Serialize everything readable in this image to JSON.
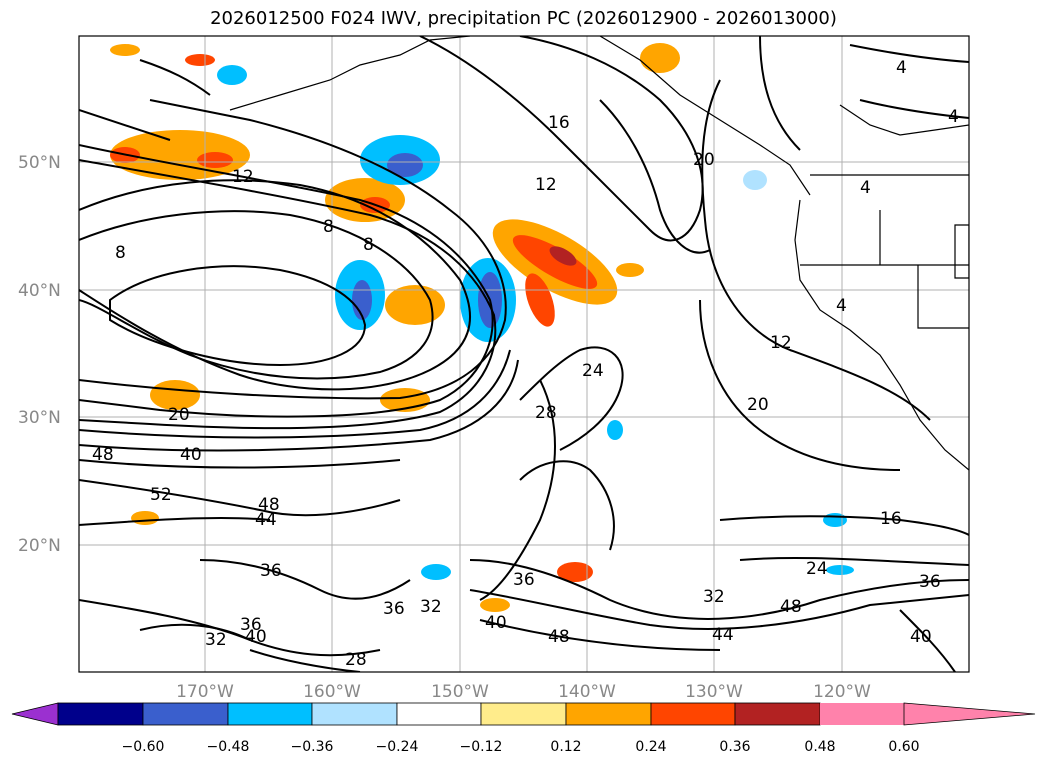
{
  "title": "2026012500 F024 IWV, precipitation PC (2026012900 - 2026013000)",
  "lat_labels": [
    "50°N",
    "40°N",
    "30°N",
    "20°N"
  ],
  "lon_labels": [
    "170°W",
    "160°W",
    "150°W",
    "140°W",
    "130°W",
    "120°W"
  ],
  "colorbar": {
    "colors": [
      "#9b30d0",
      "#00008b",
      "#3a5fcd",
      "#00bfff",
      "#b0e2ff",
      "#ffffff",
      "#ffec8b",
      "#ffa500",
      "#ff4500",
      "#b22222",
      "#ff82ab"
    ],
    "ticks": [
      "−0.60",
      "−0.48",
      "−0.36",
      "−0.24",
      "−0.12",
      "0.12",
      "0.24",
      "0.36",
      "0.48",
      "0.60"
    ]
  },
  "contour_labels": [
    "4",
    "4",
    "16",
    "20",
    "12",
    "12",
    "8",
    "8",
    "8",
    "4",
    "12",
    "24",
    "28",
    "20",
    "20",
    "48",
    "40",
    "52",
    "48",
    "44",
    "36",
    "36",
    "32",
    "36",
    "40",
    "48",
    "32",
    "44",
    "40",
    "28",
    "32",
    "40",
    "36",
    "16",
    "24",
    "36",
    "4"
  ]
}
